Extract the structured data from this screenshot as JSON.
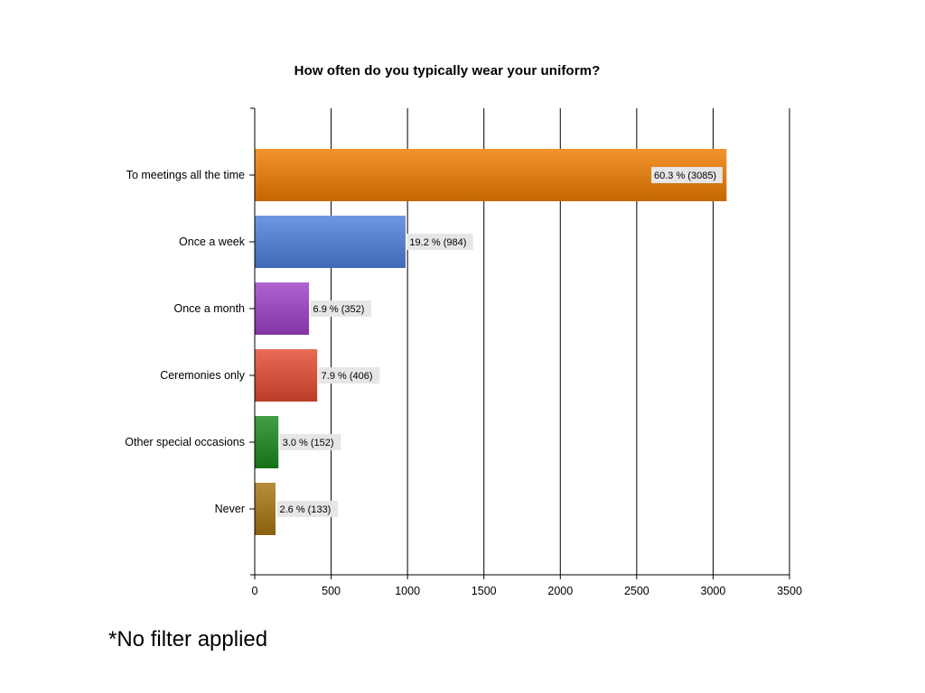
{
  "chart_data": {
    "type": "bar",
    "orientation": "horizontal",
    "title": "How often do you typically wear your uniform?",
    "categories": [
      "To meetings all the time",
      "Once a week",
      "Once a month",
      "Ceremonies only",
      "Other special occasions",
      "Never"
    ],
    "values": [
      3085,
      984,
      352,
      406,
      152,
      133
    ],
    "data_labels": [
      "60.3 % (3085)",
      "19.2 % (984)",
      "6.9 % (352)",
      "7.9 % (406)",
      "3.0 % (152)",
      "2.6 % (133)"
    ],
    "colors": [
      "#f07d00",
      "#4f7fdb",
      "#a03fc7",
      "#e34a30",
      "#1b8a1b",
      "#a87510"
    ],
    "xlim": [
      0,
      3500
    ],
    "xticks": [
      0,
      500,
      1000,
      1500,
      2000,
      2500,
      3000,
      3500
    ],
    "xtick_labels": [
      "0",
      "500",
      "1000",
      "1500",
      "2000",
      "2500",
      "3000",
      "3500"
    ],
    "grid": "vertical",
    "legend": "none"
  },
  "footnote": "*No filter applied"
}
